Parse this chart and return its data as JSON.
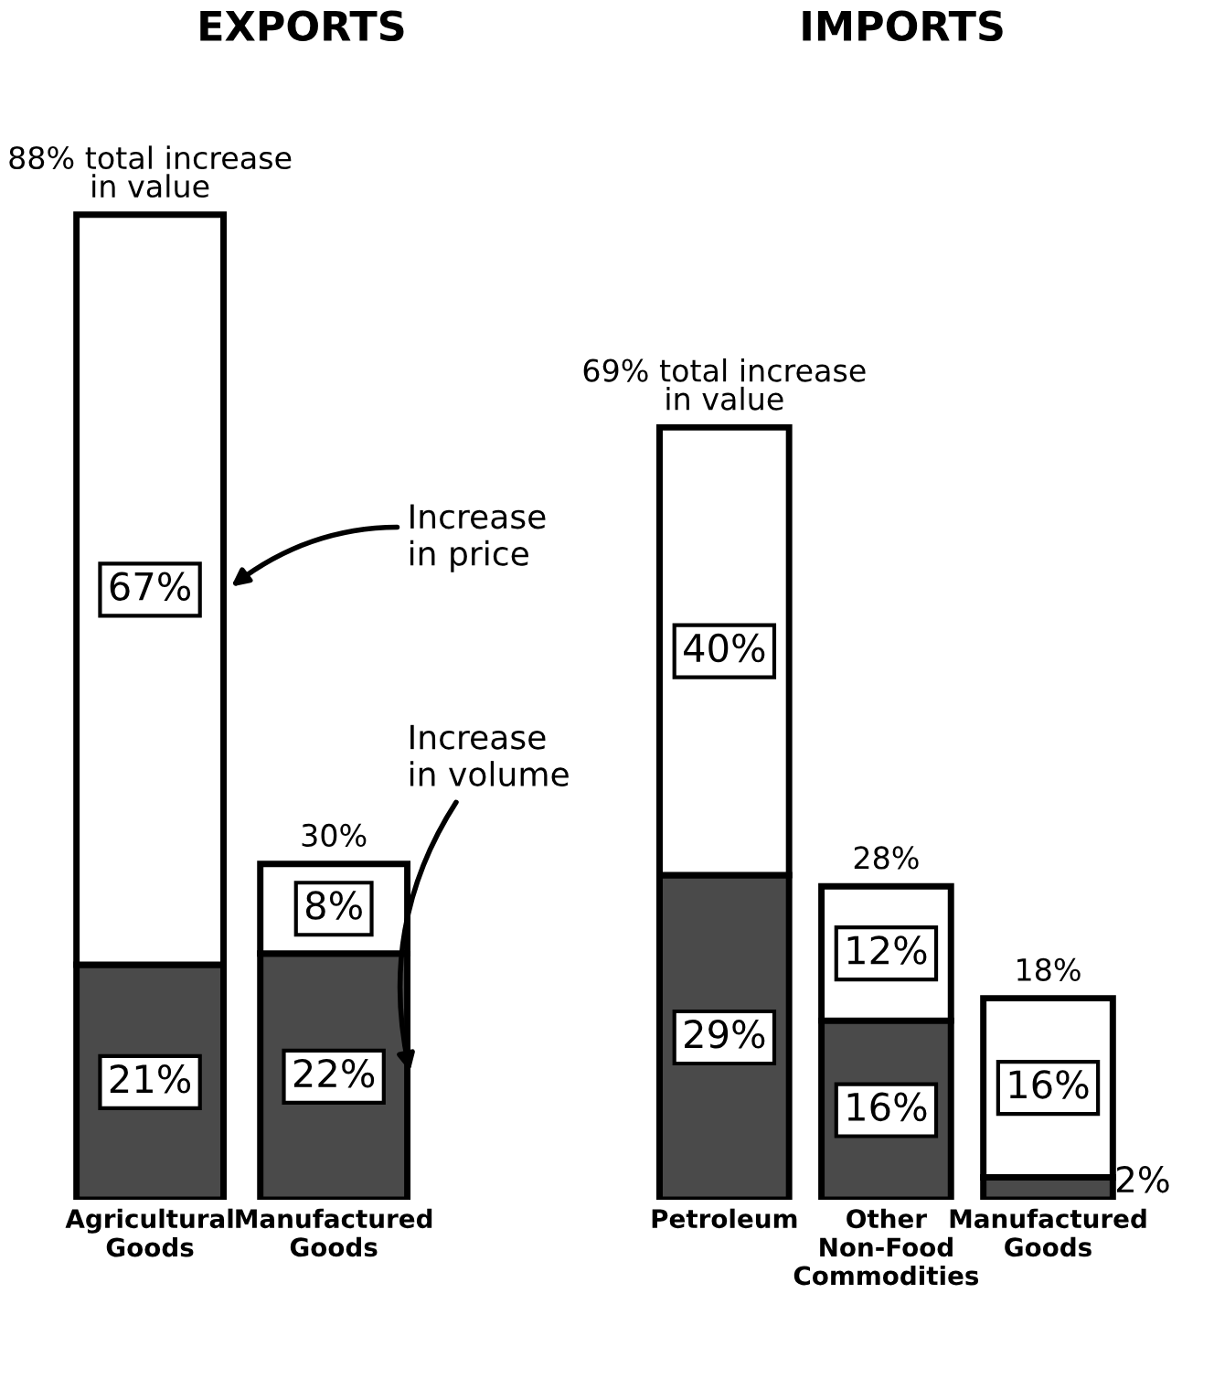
{
  "chart_data": [
    {
      "type": "bar",
      "title": "EXPORTS",
      "stacked": true,
      "tick_labels": "x",
      "categories": [
        "Agricultural\nGoods",
        "Manufactured\nGoods"
      ],
      "series": [
        {
          "name": "Increase\nin volume",
          "color": "#4a4a4a",
          "values": [
            21,
            22
          ],
          "value_labels": [
            "21%",
            "22%"
          ]
        },
        {
          "name": "Increase\nin price",
          "color": "#ffffff",
          "values": [
            67,
            8
          ],
          "value_labels": [
            "67%",
            "8%"
          ]
        }
      ],
      "totals": [
        "88% total increase\nin value",
        "30%"
      ]
    },
    {
      "type": "bar",
      "title": "IMPORTS",
      "stacked": true,
      "tick_labels": "x",
      "categories": [
        "Petroleum",
        "Other\nNon-Food\nCommodities",
        "Manufactured\nGoods"
      ],
      "series": [
        {
          "color": "#4a4a4a",
          "values": [
            29,
            16,
            2
          ],
          "value_labels": [
            "29%",
            "16%",
            "2%"
          ]
        },
        {
          "color": "#ffffff",
          "values": [
            40,
            12,
            16
          ],
          "value_labels": [
            "40%",
            "12%",
            "16%"
          ]
        }
      ],
      "totals": [
        "69% total increase\nin value",
        "28%",
        "18%"
      ]
    }
  ]
}
